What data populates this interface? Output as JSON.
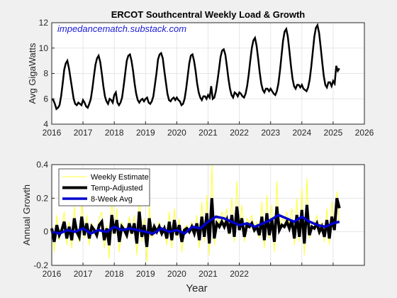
{
  "figure": {
    "background": "#f0f0f0",
    "axes_background": "#ffffff"
  },
  "chart_data": [
    {
      "type": "line",
      "title": "ERCOT Southcentral Weekly Load & Growth",
      "annotation": "impedancematch.substack.com",
      "annotation_color": "#1a1ad6",
      "ylabel": "Avg GigaWatts",
      "xlabel": "",
      "xlim": [
        2016,
        2026
      ],
      "ylim": [
        4,
        12
      ],
      "xticks": [
        2016,
        2017,
        2018,
        2019,
        2020,
        2021,
        2022,
        2023,
        2024,
        2025,
        2026
      ],
      "yticks": [
        4,
        6,
        8,
        10,
        12
      ],
      "grid": true,
      "series": [
        {
          "color": "#000000",
          "x": [
            2016.0,
            2016.05,
            2016.1,
            2016.15,
            2016.2,
            2016.25,
            2016.3,
            2016.35,
            2016.4,
            2016.45,
            2016.5,
            2016.55,
            2016.6,
            2016.65,
            2016.7,
            2016.75,
            2016.8,
            2016.85,
            2016.9,
            2016.95,
            2017.0,
            2017.05,
            2017.1,
            2017.15,
            2017.2,
            2017.25,
            2017.3,
            2017.35,
            2017.4,
            2017.45,
            2017.5,
            2017.55,
            2017.6,
            2017.65,
            2017.7,
            2017.75,
            2017.8,
            2017.85,
            2017.9,
            2017.95,
            2018.0,
            2018.05,
            2018.1,
            2018.15,
            2018.2,
            2018.25,
            2018.3,
            2018.35,
            2018.4,
            2018.45,
            2018.5,
            2018.55,
            2018.6,
            2018.65,
            2018.7,
            2018.75,
            2018.8,
            2018.85,
            2018.9,
            2018.95,
            2019.0,
            2019.05,
            2019.1,
            2019.15,
            2019.2,
            2019.25,
            2019.3,
            2019.35,
            2019.4,
            2019.45,
            2019.5,
            2019.55,
            2019.6,
            2019.65,
            2019.7,
            2019.75,
            2019.8,
            2019.85,
            2019.9,
            2019.95,
            2020.0,
            2020.05,
            2020.1,
            2020.15,
            2020.2,
            2020.25,
            2020.3,
            2020.35,
            2020.4,
            2020.45,
            2020.5,
            2020.55,
            2020.6,
            2020.65,
            2020.7,
            2020.75,
            2020.8,
            2020.85,
            2020.9,
            2020.95,
            2021.0,
            2021.05,
            2021.1,
            2021.15,
            2021.2,
            2021.25,
            2021.3,
            2021.35,
            2021.4,
            2021.45,
            2021.5,
            2021.55,
            2021.6,
            2021.65,
            2021.7,
            2021.75,
            2021.8,
            2021.85,
            2021.9,
            2021.95,
            2022.0,
            2022.05,
            2022.1,
            2022.15,
            2022.2,
            2022.25,
            2022.3,
            2022.35,
            2022.4,
            2022.45,
            2022.5,
            2022.55,
            2022.6,
            2022.65,
            2022.7,
            2022.75,
            2022.8,
            2022.85,
            2022.9,
            2022.95,
            2023.0,
            2023.05,
            2023.1,
            2023.15,
            2023.2,
            2023.25,
            2023.3,
            2023.35,
            2023.4,
            2023.45,
            2023.5,
            2023.55,
            2023.6,
            2023.65,
            2023.7,
            2023.75,
            2023.8,
            2023.85,
            2023.9,
            2023.95,
            2024.0,
            2024.05,
            2024.1,
            2024.15,
            2024.2,
            2024.25,
            2024.3,
            2024.35,
            2024.4,
            2024.45,
            2024.5,
            2024.55,
            2024.6,
            2024.65,
            2024.7,
            2024.75,
            2024.8,
            2024.85,
            2024.9,
            2024.95,
            2025.0,
            2025.05,
            2025.1,
            2025.15,
            2025.2
          ],
          "y": [
            6.0,
            5.9,
            5.6,
            5.2,
            5.3,
            5.5,
            6.2,
            7.2,
            8.3,
            8.8,
            9.0,
            8.4,
            7.6,
            6.8,
            6.0,
            5.6,
            5.5,
            5.7,
            5.6,
            5.5,
            5.9,
            5.7,
            5.4,
            5.3,
            5.6,
            6.0,
            6.8,
            7.8,
            8.7,
            9.2,
            9.4,
            8.9,
            8.0,
            7.0,
            6.2,
            5.8,
            5.6,
            6.0,
            5.9,
            5.7,
            6.3,
            6.5,
            5.7,
            5.5,
            5.7,
            6.1,
            7.0,
            8.0,
            9.0,
            9.4,
            9.5,
            9.0,
            8.2,
            7.2,
            6.4,
            5.9,
            5.7,
            5.9,
            6.0,
            5.8,
            6.0,
            6.1,
            5.7,
            5.6,
            5.8,
            6.2,
            7.1,
            8.0,
            9.1,
            9.5,
            9.6,
            9.2,
            8.2,
            7.3,
            6.4,
            5.9,
            5.8,
            6.0,
            6.1,
            5.9,
            6.1,
            5.9,
            5.8,
            5.5,
            5.6,
            6.0,
            6.8,
            7.8,
            8.8,
            9.4,
            9.5,
            9.0,
            8.2,
            7.2,
            6.5,
            6.1,
            5.9,
            6.2,
            6.2,
            6.0,
            6.3,
            6.1,
            7.0,
            6.0,
            6.1,
            6.6,
            7.4,
            8.3,
            9.3,
            9.8,
            9.9,
            9.5,
            8.6,
            7.6,
            6.8,
            6.3,
            6.1,
            6.5,
            6.4,
            6.2,
            6.5,
            6.4,
            6.2,
            6.1,
            6.4,
            7.0,
            7.9,
            9.0,
            10.0,
            10.6,
            10.8,
            10.2,
            9.2,
            8.1,
            7.2,
            6.7,
            6.5,
            6.8,
            6.8,
            6.6,
            6.8,
            6.6,
            6.4,
            6.3,
            6.6,
            7.2,
            8.2,
            9.4,
            10.6,
            11.3,
            11.5,
            10.9,
            9.8,
            8.6,
            7.6,
            7.0,
            6.8,
            7.1,
            7.1,
            6.9,
            7.1,
            6.8,
            6.7,
            6.6,
            6.9,
            7.5,
            8.5,
            9.7,
            10.9,
            11.6,
            11.8,
            11.2,
            10.1,
            8.9,
            7.8,
            7.1,
            6.9,
            7.3,
            7.3,
            7.0,
            7.4,
            7.2,
            8.6,
            8.2,
            8.4
          ]
        }
      ]
    },
    {
      "type": "line",
      "title": "",
      "ylabel": "Annual Growth",
      "xlabel": "Year",
      "xlim": [
        2016,
        2026
      ],
      "ylim": [
        -0.2,
        0.4
      ],
      "xticks": [
        2016,
        2017,
        2018,
        2019,
        2020,
        2021,
        2022
      ],
      "yticks": [
        -0.2,
        0,
        0.2,
        0.4
      ],
      "ytick_labels": [
        "-0.2",
        "0",
        "0.2",
        "0.4"
      ],
      "grid": true,
      "legend": {
        "placement": "top-left"
      },
      "series": [
        {
          "name": "Weekly Estimate",
          "color": "#ffff33",
          "x": [
            2016.0,
            2016.08,
            2016.16,
            2016.24,
            2016.32,
            2016.4,
            2016.48,
            2016.56,
            2016.64,
            2016.72,
            2016.8,
            2016.88,
            2016.96,
            2017.04,
            2017.12,
            2017.2,
            2017.28,
            2017.36,
            2017.44,
            2017.52,
            2017.6,
            2017.68,
            2017.76,
            2017.84,
            2017.92,
            2018.0,
            2018.08,
            2018.16,
            2018.24,
            2018.32,
            2018.4,
            2018.48,
            2018.56,
            2018.64,
            2018.72,
            2018.8,
            2018.88,
            2018.96,
            2019.04,
            2019.12,
            2019.2,
            2019.28,
            2019.36,
            2019.44,
            2019.52,
            2019.6,
            2019.68,
            2019.76,
            2019.84,
            2019.92,
            2020.0,
            2020.08,
            2020.16,
            2020.24,
            2020.32,
            2020.4,
            2020.48,
            2020.56,
            2020.64,
            2020.72,
            2020.8,
            2020.88,
            2020.96,
            2021.04,
            2021.12,
            2021.2,
            2021.28,
            2021.36,
            2021.44,
            2021.52,
            2021.6,
            2021.68,
            2021.76,
            2021.84,
            2021.92,
            2022.0,
            2022.08,
            2022.16,
            2022.24,
            2022.32,
            2022.4,
            2022.48,
            2022.56,
            2022.64,
            2022.72,
            2022.8,
            2022.88,
            2022.96,
            2023.04,
            2023.12,
            2023.2,
            2023.28,
            2023.36,
            2023.44,
            2023.52,
            2023.6,
            2023.68,
            2023.76,
            2023.84,
            2023.92,
            2024.0,
            2024.08,
            2024.16,
            2024.24,
            2024.32,
            2024.4,
            2024.48,
            2024.56,
            2024.64,
            2024.72,
            2024.8,
            2024.88,
            2024.96,
            2025.04,
            2025.12,
            2025.2
          ],
          "y": [
            0.05,
            -0.12,
            0.1,
            -0.05,
            0.02,
            0.12,
            -0.08,
            0.06,
            -0.1,
            0.15,
            0.0,
            -0.06,
            0.18,
            -0.04,
            0.1,
            -0.08,
            0.05,
            0.02,
            -0.03,
            0.08,
            0.12,
            -0.1,
            0.04,
            -0.16,
            0.2,
            -0.02,
            0.14,
            -0.12,
            0.06,
            0.02,
            -0.04,
            0.09,
            -0.02,
            0.1,
            -0.14,
            0.24,
            -0.06,
            0.08,
            -0.18,
            0.16,
            -0.04,
            0.05,
            0.0,
            0.06,
            -0.02,
            0.04,
            -0.08,
            0.12,
            -0.1,
            0.14,
            -0.03,
            0.08,
            -0.12,
            0.02,
            0.04,
            0.0,
            0.06,
            -0.02,
            0.1,
            -0.1,
            0.18,
            -0.06,
            0.22,
            -0.14,
            0.4,
            -0.08,
            0.1,
            0.05,
            0.12,
            0.06,
            0.14,
            -0.02,
            0.2,
            -0.06,
            0.3,
            0.02,
            0.16,
            -0.06,
            0.08,
            0.05,
            0.1,
            0.02,
            0.06,
            -0.04,
            0.18,
            -0.1,
            0.22,
            -0.04,
            0.16,
            -0.12,
            0.3,
            0.02,
            0.08,
            0.06,
            0.12,
            0.04,
            0.14,
            -0.08,
            0.2,
            -0.06,
            0.26,
            -0.14,
            0.32,
            -0.04,
            0.06,
            0.04,
            0.1,
            0.0,
            0.06,
            -0.06,
            0.14,
            -0.08,
            0.18,
            0.02,
            0.24,
            0.05
          ]
        },
        {
          "name": "Temp-Adjusted",
          "color": "#000000",
          "x": [
            2016.0,
            2016.08,
            2016.16,
            2016.24,
            2016.32,
            2016.4,
            2016.48,
            2016.56,
            2016.64,
            2016.72,
            2016.8,
            2016.88,
            2016.96,
            2017.04,
            2017.12,
            2017.2,
            2017.28,
            2017.36,
            2017.44,
            2017.52,
            2017.6,
            2017.68,
            2017.76,
            2017.84,
            2017.92,
            2018.0,
            2018.08,
            2018.16,
            2018.24,
            2018.32,
            2018.4,
            2018.48,
            2018.56,
            2018.64,
            2018.72,
            2018.8,
            2018.88,
            2018.96,
            2019.04,
            2019.12,
            2019.2,
            2019.28,
            2019.36,
            2019.44,
            2019.52,
            2019.6,
            2019.68,
            2019.76,
            2019.84,
            2019.92,
            2020.0,
            2020.08,
            2020.16,
            2020.24,
            2020.32,
            2020.4,
            2020.48,
            2020.56,
            2020.64,
            2020.72,
            2020.8,
            2020.88,
            2020.96,
            2021.04,
            2021.12,
            2021.2,
            2021.28,
            2021.36,
            2021.44,
            2021.52,
            2021.6,
            2021.68,
            2021.76,
            2021.84,
            2021.92,
            2022.0,
            2022.08,
            2022.16,
            2022.24,
            2022.32,
            2022.4,
            2022.48,
            2022.56,
            2022.64,
            2022.72,
            2022.8,
            2022.88,
            2022.96,
            2023.04,
            2023.12,
            2023.2,
            2023.28,
            2023.36,
            2023.44,
            2023.52,
            2023.6,
            2023.68,
            2023.76,
            2023.84,
            2023.92,
            2024.0,
            2024.08,
            2024.16,
            2024.24,
            2024.32,
            2024.4,
            2024.48,
            2024.56,
            2024.64,
            2024.72,
            2024.8,
            2024.88,
            2024.96,
            2025.04,
            2025.12,
            2025.2
          ],
          "y": [
            0.02,
            -0.06,
            0.04,
            -0.02,
            0.01,
            0.06,
            -0.04,
            0.03,
            -0.05,
            0.08,
            0.0,
            -0.03,
            0.09,
            -0.02,
            0.05,
            -0.04,
            0.03,
            0.01,
            -0.02,
            0.04,
            0.06,
            -0.05,
            0.02,
            -0.08,
            0.1,
            -0.01,
            0.07,
            -0.06,
            0.03,
            0.01,
            -0.02,
            0.05,
            -0.01,
            0.05,
            -0.07,
            0.12,
            -0.03,
            0.04,
            -0.09,
            0.08,
            -0.02,
            0.03,
            0.0,
            0.03,
            -0.01,
            0.02,
            -0.04,
            0.06,
            -0.05,
            0.07,
            -0.02,
            0.04,
            -0.06,
            0.01,
            0.02,
            0.0,
            0.03,
            -0.01,
            0.05,
            -0.05,
            0.09,
            -0.03,
            0.11,
            -0.07,
            0.2,
            -0.04,
            0.05,
            0.03,
            0.06,
            0.03,
            0.07,
            -0.01,
            0.1,
            -0.03,
            0.15,
            0.01,
            0.08,
            -0.03,
            0.04,
            0.03,
            0.05,
            0.01,
            0.03,
            -0.02,
            0.09,
            -0.05,
            0.11,
            -0.02,
            0.08,
            -0.06,
            0.15,
            0.01,
            0.04,
            0.03,
            0.06,
            0.02,
            0.07,
            -0.04,
            0.1,
            -0.03,
            0.13,
            -0.07,
            0.16,
            -0.02,
            0.03,
            0.02,
            0.05,
            0.0,
            0.03,
            -0.03,
            0.07,
            -0.04,
            0.09,
            0.01,
            0.2,
            0.14
          ]
        },
        {
          "name": "8-Week Avg",
          "color": "#0000cc",
          "x": [
            2016.0,
            2016.25,
            2016.5,
            2016.75,
            2017.0,
            2017.25,
            2017.5,
            2017.75,
            2018.0,
            2018.25,
            2018.5,
            2018.75,
            2019.0,
            2019.25,
            2019.5,
            2019.75,
            2020.0,
            2020.25,
            2020.5,
            2020.75,
            2021.0,
            2021.25,
            2021.5,
            2021.75,
            2022.0,
            2022.25,
            2022.5,
            2022.75,
            2023.0,
            2023.25,
            2023.5,
            2023.75,
            2024.0,
            2024.25,
            2024.5,
            2024.75,
            2025.0,
            2025.2
          ],
          "y": [
            0.0,
            -0.01,
            0.01,
            0.0,
            0.02,
            -0.01,
            0.01,
            0.0,
            0.03,
            0.01,
            0.02,
            0.01,
            0.0,
            -0.01,
            0.02,
            0.0,
            0.01,
            -0.01,
            0.03,
            0.02,
            0.06,
            0.09,
            0.08,
            0.06,
            0.04,
            0.05,
            0.03,
            0.05,
            0.07,
            0.1,
            0.08,
            0.06,
            0.09,
            0.06,
            0.04,
            0.03,
            0.05,
            0.06
          ]
        }
      ]
    }
  ]
}
